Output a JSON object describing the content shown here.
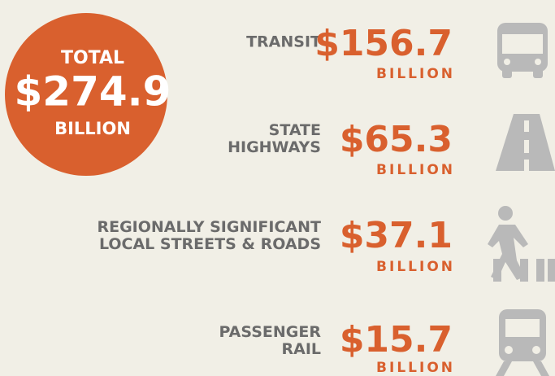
{
  "total": {
    "label": "TOTAL",
    "amount": "$274.9",
    "unit": "BILLION"
  },
  "items": [
    {
      "label": [
        "TRANSIT"
      ],
      "amount": "$156.7",
      "unit": "BILLION"
    },
    {
      "label": [
        "STATE",
        "HIGHWAYS"
      ],
      "amount": "$65.3",
      "unit": "BILLION"
    },
    {
      "label": [
        "REGIONALLY SIGNIFICANT",
        "LOCAL STREETS & ROADS"
      ],
      "amount": "$37.1",
      "unit": "BILLION"
    },
    {
      "label": [
        "PASSENGER",
        "RAIL"
      ],
      "amount": "$15.7",
      "unit": "BILLION"
    }
  ]
}
